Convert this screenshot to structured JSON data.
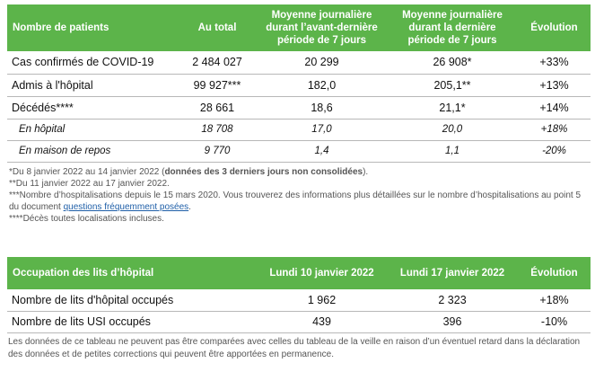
{
  "patients_table": {
    "headers": [
      "Nombre de patients",
      "Au total",
      "Moyenne journalière durant l’avant-dernière période de 7 jours",
      "Moyenne journalière durant la dernière période de 7 jours",
      "Évolution"
    ],
    "rows": [
      [
        "Cas confirmés de COVID-19",
        "2 484 027",
        "20 299",
        "26 908*",
        "+33%"
      ],
      [
        "Admis à l'hôpital",
        "99 927***",
        "182,0",
        "205,1**",
        "+13%"
      ],
      [
        "Décédés****",
        "28 661",
        "18,6",
        "21,1*",
        "+14%"
      ],
      [
        "En hôpital",
        "18 708",
        "17,0",
        "20,0",
        "+18%"
      ],
      [
        "En maison de repos",
        "9 770",
        "1,4",
        "1,1",
        "-20%"
      ]
    ]
  },
  "notes": {
    "n1_prefix": "*Du 8 janvier 2022 au 14 janvier 2022 (",
    "n1_bold": "données des 3 derniers jours non consolidées",
    "n1_suffix": ").",
    "n2": "**Du 11 janvier 2022 au 17 janvier 2022.",
    "n3_text": "***Nombre d’hospitalisations depuis le 15 mars 2020. Vous trouverez des informations plus détaillées sur le nombre d’hospitalisations au point 5 du document",
    "n3_link": "questions fréquemment posées",
    "n3_end": ".",
    "n4": "****Décès toutes localisations incluses."
  },
  "beds_table": {
    "headers": [
      "Occupation des lits d’hôpital",
      "Lundi 10 janvier 2022",
      "Lundi 17 janvier 2022",
      "Évolution"
    ],
    "rows": [
      [
        "Nombre de lits d'hôpital occupés",
        "1 962",
        "2 323",
        "+18%"
      ],
      [
        "Nombre de lits USI occupés",
        "439",
        "396",
        "-10%"
      ]
    ]
  },
  "footer": "Les données de ce tableau ne peuvent pas être comparées avec celles du tableau de la veille en raison d’un éventuel retard dans la déclaration des données et de petites corrections qui peuvent être apportées en permanence.",
  "colors": {
    "header_green": "#5cb44a",
    "note_gray": "#555555",
    "link_blue": "#1f5fa8"
  }
}
